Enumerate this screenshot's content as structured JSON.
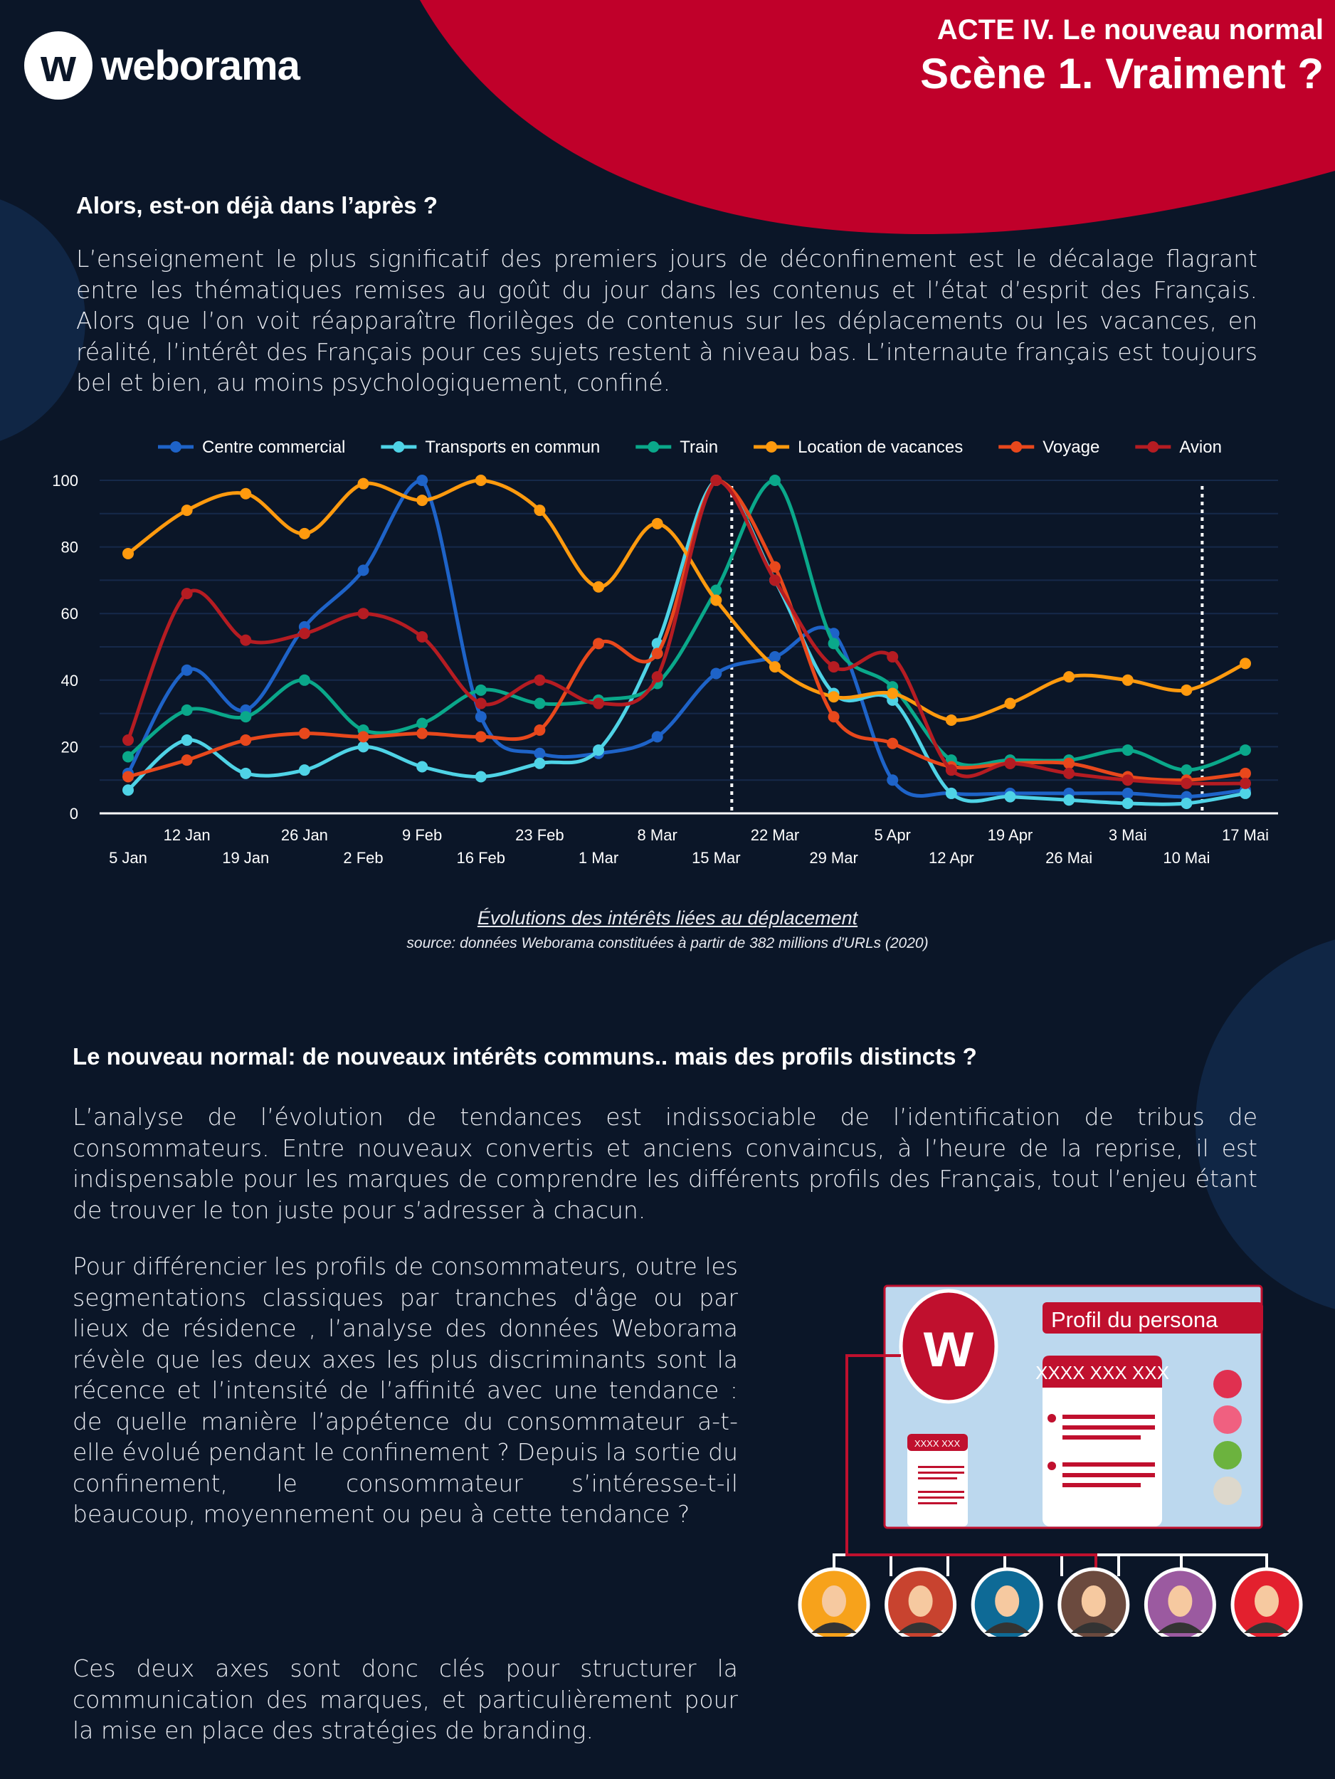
{
  "header": {
    "logo_text": "weborama",
    "logo_letter": "w",
    "act_title": "ACTE IV. Le nouveau normal",
    "scene_title": "Scène 1.  Vraiment ?"
  },
  "section1": {
    "heading": "Alors, est-on déjà dans l’après ?",
    "paragraph": "L’enseignement le plus significatif des premiers jours de déconfinement est le décalage flagrant entre les thématiques remises au goût du jour dans les contenus et l’état d’esprit des Français. Alors que l’on voit réapparaître florilèges de contenus sur les déplacements ou les vacances, en réalité, l’intérêt des Français pour ces sujets restent à niveau bas. L’internaute français est toujours bel et bien, au moins psychologiquement, confiné."
  },
  "chart_data": {
    "type": "line",
    "title": "Évolutions des intérêts liées au déplacement",
    "source": "source: données Weborama constituées à partir de 382 millions d'URLs (2020)",
    "xlabel": "",
    "ylabel": "",
    "ylim": [
      0,
      100
    ],
    "yticks": [
      "0",
      "20",
      "40",
      "60",
      "80",
      "100"
    ],
    "grid": true,
    "legend_position": "top",
    "categories": [
      "5 Jan",
      "12 Jan",
      "19 Jan",
      "26 Jan",
      "2 Feb",
      "9 Feb",
      "16 Feb",
      "23 Feb",
      "1 Mar",
      "8 Mar",
      "15 Mar",
      "22 Mar",
      "29 Mar",
      "5 Apr",
      "12 Apr",
      "19 Apr",
      "26 Mai",
      "3 Mai",
      "10 Mai",
      "17 Mai"
    ],
    "markers": [
      {
        "after": "15 Mar",
        "style": "dotted"
      },
      {
        "after": "10 Mai",
        "style": "dotted"
      }
    ],
    "series": [
      {
        "name": "Centre commercial",
        "color": "#1e63c8",
        "values": [
          12,
          43,
          31,
          56,
          73,
          100,
          29,
          18,
          18,
          23,
          42,
          47,
          54,
          10,
          6,
          6,
          6,
          6,
          5,
          7
        ]
      },
      {
        "name": "Transports en commun",
        "color": "#4fd3e6",
        "values": [
          7,
          22,
          12,
          13,
          20,
          14,
          11,
          15,
          19,
          51,
          100,
          70,
          36,
          34,
          6,
          5,
          4,
          3,
          3,
          6
        ]
      },
      {
        "name": "Train",
        "color": "#0aa88a",
        "values": [
          17,
          31,
          29,
          40,
          25,
          27,
          37,
          33,
          34,
          39,
          67,
          100,
          51,
          38,
          16,
          16,
          16,
          19,
          13,
          19
        ]
      },
      {
        "name": "Location de vacances",
        "color": "#ff9a0e",
        "values": [
          78,
          91,
          96,
          84,
          99,
          94,
          100,
          91,
          68,
          87,
          64,
          44,
          35,
          36,
          28,
          33,
          41,
          40,
          37,
          45
        ]
      },
      {
        "name": "Voyage",
        "color": "#e8481c",
        "values": [
          11,
          16,
          22,
          24,
          23,
          24,
          23,
          25,
          51,
          48,
          100,
          74,
          29,
          21,
          14,
          15,
          15,
          11,
          10,
          12
        ]
      },
      {
        "name": "Avion",
        "color": "#b51c22",
        "values": [
          22,
          66,
          52,
          54,
          60,
          53,
          33,
          40,
          33,
          41,
          100,
          70,
          44,
          47,
          13,
          15,
          12,
          10,
          9,
          9
        ]
      }
    ]
  },
  "section2": {
    "heading": "Le nouveau normal: de nouveaux intérêts communs.. mais des profils distincts ?",
    "paragraph": "L’analyse de l’évolution de tendances est indissociable de l’identification de tribus de consommateurs. Entre nouveaux convertis et anciens convaincus, à l’heure de la reprise, il est indispensable pour les marques de comprendre les différents profils des Français, tout l’enjeu étant de trouver le ton juste pour s’adresser à chacun.",
    "paragraph2a": "Pour différencier les profils de consommateurs, outre les segmentations classiques par tranches d'âge ou par lieux de résidence , l’analyse des données Weborama révèle que les deux axes les plus discriminants sont la récence et l’intensité de l’affinité avec une tendance : de quelle manière l’appétence du consommateur a-t-elle évolué pendant le confinement ? Depuis la sortie du confinement, le consommateur s’intéresse-t-il beaucoup, moyennement ou peu à cette tendance ?",
    "paragraph2b": "Ces deux axes sont donc clés pour structurer la communication des marques, et particulièrement pour la mise en place des stratégies de branding."
  },
  "illustration": {
    "profile_title": "Profil du persona",
    "card_title": "XXXX XXX XXX",
    "small_card_title": "XXXX XXX",
    "icons": [
      "trophy-icon",
      "diy-icon",
      "plant-icon",
      "car-icon"
    ],
    "avatar_colors": [
      "#f7a21b",
      "#c8432f",
      "#0e6a96",
      "#6b4a3e",
      "#9b5aa0",
      "#e3202e"
    ]
  },
  "colors": {
    "background": "#0b1628",
    "accent": "#c0002a"
  }
}
